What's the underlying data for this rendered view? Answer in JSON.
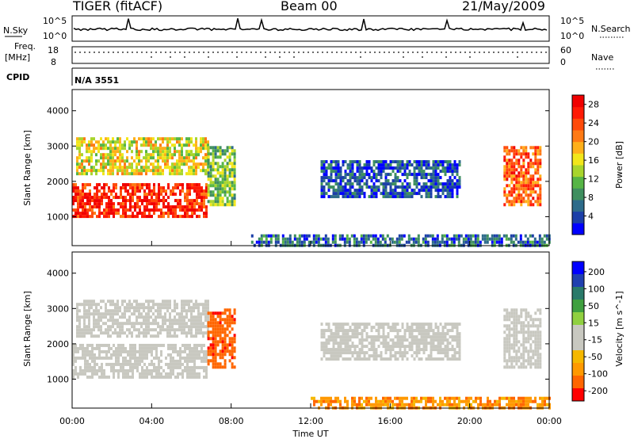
{
  "header": {
    "radar": "TIGER (fitACF)",
    "beam": "Beam 00",
    "date": "21/May/2009"
  },
  "strips": {
    "nsky_label": "N.Sky",
    "nsky_ticks": [
      "10^5",
      "10^0"
    ],
    "nsearch_label": "N.Search",
    "nsearch_ticks": [
      "10^5",
      "10^0"
    ],
    "freq_label_1": "Freq.",
    "freq_label_2": "[MHz]",
    "freq_ticks": [
      "18",
      "8"
    ],
    "nave_label": "Nave",
    "nave_ticks": [
      "60",
      "0"
    ],
    "cpid_label": "CPID",
    "cpid_value": "N/A 3551"
  },
  "colors": {
    "power": [
      "#0000ff",
      "#1c3fa8",
      "#2d6b8a",
      "#3f8f5f",
      "#56b545",
      "#a8d52c",
      "#f2e61a",
      "#ffb01a",
      "#ff7a14",
      "#ff4a0a",
      "#ff1a05",
      "#f00000"
    ],
    "velocity": [
      "#ff0000",
      "#ff6600",
      "#ff9900",
      "#f5b800",
      "#c8c8c0",
      "#c8c8c0",
      "#90d040",
      "#3fa03f",
      "#2a7a6a",
      "#2040b0",
      "#0000ff"
    ]
  },
  "chart_data": [
    {
      "type": "heatmap",
      "title": "",
      "xlabel": "Time UT",
      "ylabel": "Slant Range [km]",
      "x_ticks": [
        "00:00",
        "04:00",
        "08:00",
        "12:00",
        "16:00",
        "20:00",
        "00:00"
      ],
      "xlim_hours": [
        0,
        24
      ],
      "ylim": [
        180,
        4600
      ],
      "y_ticks": [
        1000,
        2000,
        3000,
        4000
      ],
      "colorbar": {
        "label": "Power [dB]",
        "ticks": [
          4,
          8,
          12,
          16,
          20,
          24,
          28
        ],
        "range": [
          0,
          30
        ]
      },
      "regions": [
        {
          "t0": 0.0,
          "t1": 6.8,
          "r0": 1050,
          "r1": 1950,
          "value": 26
        },
        {
          "t0": 0.2,
          "t1": 6.8,
          "r0": 2200,
          "r1": 3250,
          "value": 16
        },
        {
          "t0": 6.8,
          "t1": 8.2,
          "r0": 1300,
          "r1": 3000,
          "value": 12
        },
        {
          "t0": 12.5,
          "t1": 19.5,
          "r0": 1600,
          "r1": 2600,
          "value": 5
        },
        {
          "t0": 9.0,
          "t1": 24.0,
          "r0": 190,
          "r1": 500,
          "value": 6
        },
        {
          "t0": 21.7,
          "t1": 23.5,
          "r0": 1300,
          "r1": 3000,
          "value": 23
        }
      ]
    },
    {
      "type": "heatmap",
      "title": "",
      "xlabel": "Time UT",
      "ylabel": "Slant Range [km]",
      "x_ticks": [
        "00:00",
        "04:00",
        "08:00",
        "12:00",
        "16:00",
        "20:00",
        "00:00"
      ],
      "xlim_hours": [
        0,
        24
      ],
      "ylim": [
        180,
        4600
      ],
      "y_ticks": [
        1000,
        2000,
        3000,
        4000
      ],
      "colorbar": {
        "label": "Velocity [m s^-1]",
        "ticks": [
          "200",
          "100",
          "50",
          "15",
          "-15",
          "-50",
          "-100",
          "-200"
        ]
      },
      "regions": [
        {
          "t0": 0.0,
          "t1": 6.8,
          "r0": 1050,
          "r1": 2000,
          "value": 0
        },
        {
          "t0": 0.2,
          "t1": 6.8,
          "r0": 2200,
          "r1": 3250,
          "value": 0
        },
        {
          "t0": 6.8,
          "t1": 8.2,
          "r0": 1300,
          "r1": 3000,
          "value": -120
        },
        {
          "t0": 12.5,
          "t1": 19.5,
          "r0": 1600,
          "r1": 2600,
          "value": 0
        },
        {
          "t0": 12.0,
          "t1": 24.0,
          "r0": 190,
          "r1": 500,
          "value": -60
        },
        {
          "t0": 21.7,
          "t1": 23.5,
          "r0": 1300,
          "r1": 3000,
          "value": 0
        }
      ]
    }
  ]
}
